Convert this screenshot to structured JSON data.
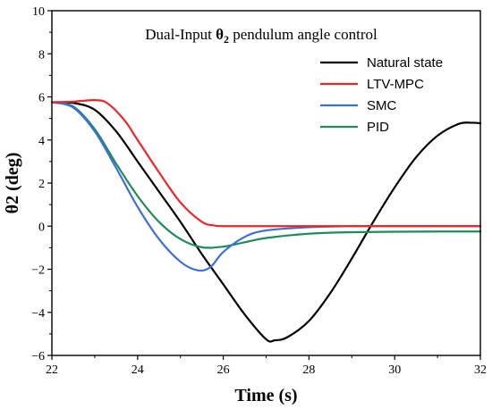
{
  "chart_data": {
    "type": "line",
    "title_prefix": "Dual-Input ",
    "title_symbol": "θ",
    "title_sub": "2",
    "title_suffix": " pendulum angle control",
    "xlabel": "Time (s)",
    "ylabel": "θ2 (deg)",
    "xlim": [
      22,
      32
    ],
    "ylim": [
      -6,
      10
    ],
    "x_ticks": [
      22,
      24,
      26,
      28,
      30,
      32
    ],
    "y_ticks": [
      -6,
      -4,
      -2,
      0,
      2,
      4,
      6,
      8,
      10
    ],
    "x_tick_labels": [
      "22",
      "24",
      "26",
      "28",
      "30",
      "32"
    ],
    "y_tick_labels": [
      "−6",
      "−4",
      "−2",
      "0",
      "2",
      "4",
      "6",
      "8",
      "10"
    ],
    "legend_position": "top-right",
    "grid": false,
    "series": [
      {
        "name": "Natural state",
        "color": "#000000",
        "points": [
          [
            22,
            5.75
          ],
          [
            22.5,
            5.72
          ],
          [
            23,
            5.4
          ],
          [
            23.5,
            4.4
          ],
          [
            24,
            3.0
          ],
          [
            24.5,
            1.6
          ],
          [
            25,
            0.2
          ],
          [
            25.5,
            -1.3
          ],
          [
            26,
            -2.7
          ],
          [
            26.5,
            -4.1
          ],
          [
            27,
            -5.25
          ],
          [
            27.2,
            -5.3
          ],
          [
            27.5,
            -5.15
          ],
          [
            28,
            -4.4
          ],
          [
            28.5,
            -3.1
          ],
          [
            29,
            -1.5
          ],
          [
            29.5,
            0.2
          ],
          [
            30,
            1.8
          ],
          [
            30.5,
            3.2
          ],
          [
            31,
            4.2
          ],
          [
            31.5,
            4.75
          ],
          [
            31.8,
            4.8
          ],
          [
            32,
            4.78
          ]
        ]
      },
      {
        "name": "LTV-MPC",
        "color": "#e8272a",
        "points": [
          [
            22,
            5.75
          ],
          [
            22.5,
            5.78
          ],
          [
            23,
            5.85
          ],
          [
            23.3,
            5.7
          ],
          [
            23.7,
            4.9
          ],
          [
            24,
            4.0
          ],
          [
            24.5,
            2.5
          ],
          [
            25,
            1.1
          ],
          [
            25.5,
            0.2
          ],
          [
            25.8,
            0.03
          ],
          [
            26,
            0.0
          ],
          [
            27,
            0.0
          ],
          [
            28,
            0.0
          ],
          [
            29,
            0.0
          ],
          [
            30,
            0.0
          ],
          [
            31,
            0.0
          ],
          [
            32,
            0.0
          ]
        ]
      },
      {
        "name": "SMC",
        "color": "#3d6fd8",
        "points": [
          [
            22,
            5.75
          ],
          [
            22.5,
            5.5
          ],
          [
            23,
            4.4
          ],
          [
            23.5,
            2.7
          ],
          [
            24,
            0.9
          ],
          [
            24.5,
            -0.6
          ],
          [
            25,
            -1.65
          ],
          [
            25.4,
            -2.05
          ],
          [
            25.7,
            -1.9
          ],
          [
            26,
            -1.2
          ],
          [
            26.5,
            -0.5
          ],
          [
            27,
            -0.2
          ],
          [
            28,
            -0.05
          ],
          [
            29,
            0.0
          ],
          [
            30,
            0.0
          ],
          [
            31,
            0.0
          ],
          [
            32,
            0.0
          ]
        ]
      },
      {
        "name": "PID",
        "color": "#1f8a5b",
        "points": [
          [
            22,
            5.75
          ],
          [
            22.5,
            5.55
          ],
          [
            23,
            4.5
          ],
          [
            23.5,
            2.9
          ],
          [
            24,
            1.4
          ],
          [
            24.5,
            0.2
          ],
          [
            25,
            -0.6
          ],
          [
            25.5,
            -0.98
          ],
          [
            26,
            -0.95
          ],
          [
            26.5,
            -0.75
          ],
          [
            27,
            -0.55
          ],
          [
            28,
            -0.35
          ],
          [
            29,
            -0.28
          ],
          [
            30,
            -0.26
          ],
          [
            31,
            -0.25
          ],
          [
            32,
            -0.25
          ]
        ]
      }
    ]
  }
}
